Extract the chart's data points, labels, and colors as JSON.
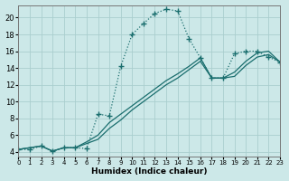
{
  "xlabel": "Humidex (Indice chaleur)",
  "bg_color": "#cce8e8",
  "line_color": "#1a6e6e",
  "grid_color": "#aacece",
  "xlim": [
    0,
    23
  ],
  "ylim": [
    3.5,
    21.5
  ],
  "xticks": [
    0,
    1,
    2,
    3,
    4,
    5,
    6,
    7,
    8,
    9,
    10,
    11,
    12,
    13,
    14,
    15,
    16,
    17,
    18,
    19,
    20,
    21,
    22,
    23
  ],
  "yticks": [
    4,
    6,
    8,
    10,
    12,
    14,
    16,
    18,
    20
  ],
  "main_x": [
    0,
    1,
    2,
    3,
    4,
    5,
    6,
    7,
    8,
    9,
    10,
    11,
    12,
    13,
    14,
    15,
    16,
    17,
    18,
    19,
    20,
    21,
    22,
    23
  ],
  "main_y": [
    4.3,
    4.3,
    4.7,
    4.1,
    4.5,
    4.5,
    4.4,
    8.5,
    8.3,
    14.2,
    18.0,
    19.3,
    20.5,
    21.0,
    20.8,
    17.5,
    15.2,
    12.8,
    12.8,
    15.7,
    16.0,
    16.0,
    15.3,
    14.7
  ],
  "diag1_x": [
    0,
    2,
    3,
    4,
    5,
    6,
    7,
    8,
    9,
    10,
    11,
    12,
    13,
    14,
    15,
    16,
    17,
    18,
    19,
    20,
    21,
    22,
    23
  ],
  "diag1_y": [
    4.3,
    4.7,
    4.1,
    4.5,
    4.5,
    5.2,
    6.0,
    7.5,
    8.5,
    9.5,
    10.5,
    11.5,
    12.5,
    13.3,
    14.2,
    15.2,
    12.8,
    12.8,
    13.5,
    14.8,
    15.8,
    16.0,
    14.7
  ],
  "diag2_x": [
    0,
    2,
    3,
    4,
    5,
    6,
    7,
    8,
    9,
    10,
    11,
    12,
    13,
    14,
    15,
    16,
    17,
    18,
    19,
    20,
    21,
    22,
    23
  ],
  "diag2_y": [
    4.3,
    4.7,
    4.1,
    4.5,
    4.5,
    5.0,
    5.5,
    6.8,
    7.8,
    9.0,
    10.0,
    11.0,
    12.0,
    12.8,
    13.8,
    14.8,
    12.8,
    12.8,
    13.0,
    14.3,
    15.3,
    15.6,
    14.7
  ]
}
